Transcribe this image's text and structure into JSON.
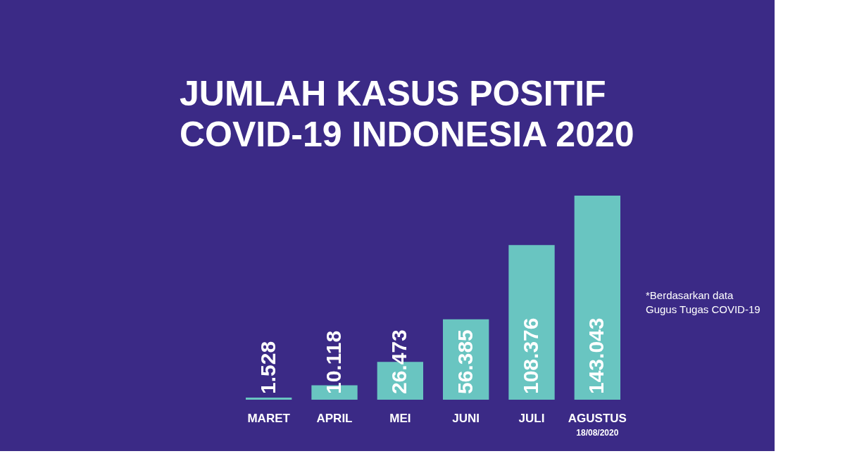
{
  "chart_data": {
    "type": "bar",
    "title": "JUMLAH KASUS POSITIF\nCOVID-19 INDONESIA 2020",
    "categories": [
      "MARET",
      "APRIL",
      "MEI",
      "JUNI",
      "JULI",
      "AGUSTUS"
    ],
    "values": [
      1528,
      10118,
      26473,
      56385,
      108376,
      143043
    ],
    "value_labels": [
      "1.528",
      "10.118",
      "26.473",
      "56.385",
      "108.376",
      "143.043"
    ],
    "color": "#6fd6c8",
    "tick_labels": "x",
    "grid": false,
    "annotations": [
      "18/08/2020",
      "*Berdasarkan data\nGugus Tugas COVID-19"
    ]
  }
}
